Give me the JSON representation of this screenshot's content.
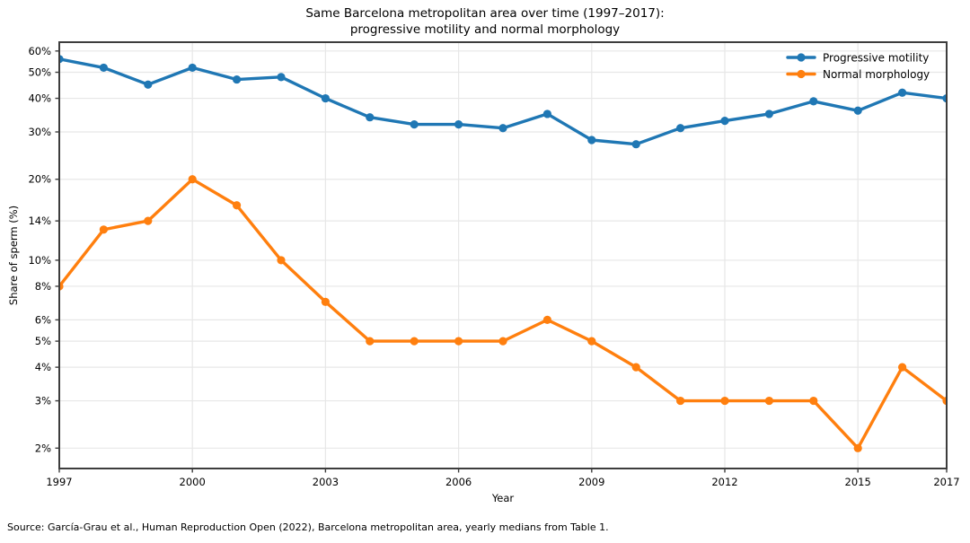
{
  "chart_data": {
    "type": "line",
    "title_lines": [
      "Same Barcelona metropolitan area over time (1997–2017):",
      "progressive motility and normal morphology"
    ],
    "xlabel": "Year",
    "ylabel": "Share of sperm (%)",
    "x": [
      1997,
      1998,
      1999,
      2000,
      2001,
      2002,
      2003,
      2004,
      2005,
      2006,
      2007,
      2008,
      2009,
      2010,
      2011,
      2012,
      2013,
      2014,
      2015,
      2016,
      2017
    ],
    "series": [
      {
        "name": "Progressive motility",
        "color": "#1f77b4",
        "values": [
          56,
          52,
          45,
          52,
          47,
          48,
          40,
          34,
          32,
          32,
          31,
          35,
          28,
          27,
          31,
          33,
          35,
          39,
          36,
          42,
          40
        ]
      },
      {
        "name": "Normal morphology",
        "color": "#ff7f0e",
        "values": [
          8,
          13,
          14,
          20,
          16,
          10,
          7,
          5,
          5,
          5,
          5,
          6,
          5,
          4,
          3,
          3,
          3,
          3,
          2,
          4,
          3
        ]
      }
    ],
    "x_ticks": [
      1997,
      2000,
      2003,
      2006,
      2009,
      2012,
      2015,
      2017
    ],
    "y_ticks": [
      60,
      50,
      40,
      30,
      20,
      14,
      10,
      8,
      6,
      5,
      4,
      3,
      2
    ],
    "y_tick_suffix": "%",
    "y_scale": "log",
    "xlim": [
      1997,
      2017
    ],
    "ylim": [
      1.68,
      64.7
    ],
    "grid": true,
    "legend_position": "upper right"
  },
  "source_note": "Source: García-Grau et al., Human Reproduction Open (2022), Barcelona metropolitan area, yearly medians from Table 1.",
  "colors": {
    "grid": "#e7e7e7",
    "spine": "#3d3d3d",
    "text": "#000000",
    "background": "#ffffff"
  }
}
